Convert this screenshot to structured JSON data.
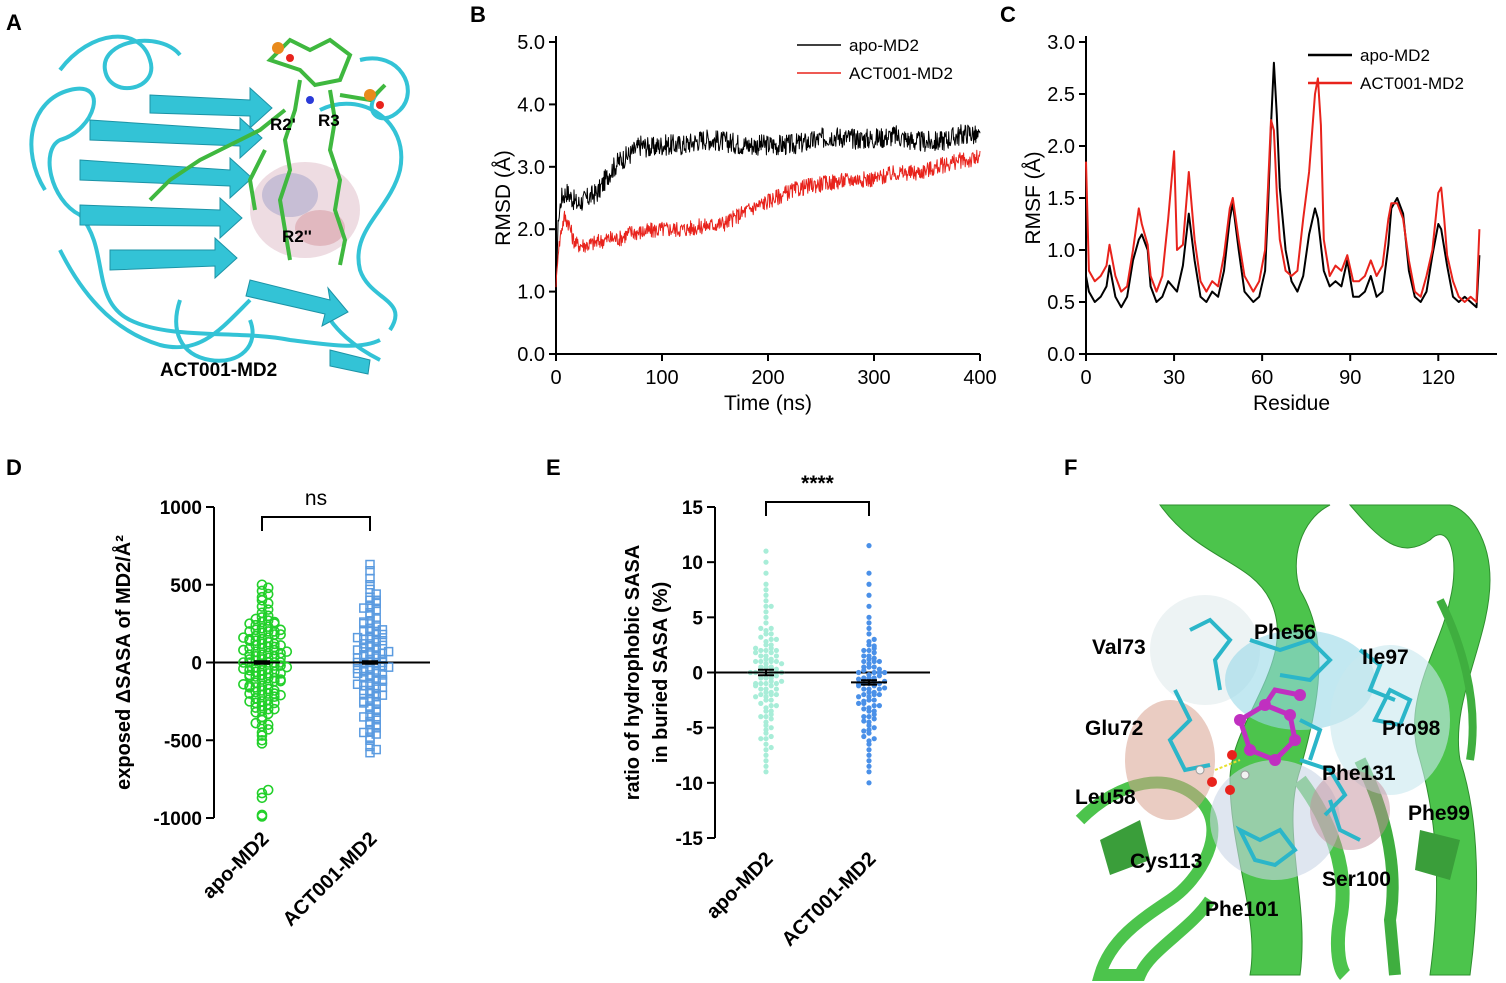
{
  "panels": {
    "A": {
      "letter": "A",
      "caption": "ACT001-MD2",
      "labels": [
        "R2'",
        "R3",
        "R2''"
      ],
      "colors": {
        "protein": "#33c3d6",
        "ligand": "#3fb83f"
      }
    },
    "F": {
      "letter": "F",
      "residues": [
        "Val73",
        "Phe56",
        "Ile97",
        "Glu72",
        "Pro98",
        "Phe131",
        "Leu58",
        "Phe99",
        "Cys113",
        "Ser100",
        "Phe101"
      ],
      "colors": {
        "protein": "#4cc44c",
        "ligand": "#c030c0",
        "sticks": "#2bb6c9"
      }
    }
  },
  "chart_data": [
    {
      "id": "B",
      "type": "line",
      "letter": "B",
      "title": "",
      "xlabel": "Time (ns)",
      "ylabel": "RMSD (Å)",
      "xlim": [
        0,
        400
      ],
      "ylim": [
        0,
        5
      ],
      "xticks": [
        0,
        100,
        200,
        300,
        400
      ],
      "yticks": [
        0,
        1,
        2,
        3,
        4,
        5
      ],
      "yticklabels": [
        "0.0",
        "1.0",
        "2.0",
        "3.0",
        "4.0",
        "5.0"
      ],
      "legend": "top-right",
      "series": [
        {
          "name": "apo-MD2",
          "color": "#000000",
          "noise": 0.17,
          "x": [
            0,
            2,
            5,
            10,
            15,
            20,
            30,
            40,
            50,
            60,
            70,
            80,
            90,
            100,
            120,
            140,
            160,
            180,
            200,
            220,
            240,
            260,
            280,
            300,
            320,
            340,
            360,
            380,
            390,
            400
          ],
          "y": [
            1.0,
            2.1,
            2.5,
            2.6,
            2.5,
            2.4,
            2.5,
            2.6,
            2.9,
            3.1,
            3.2,
            3.35,
            3.3,
            3.35,
            3.35,
            3.45,
            3.4,
            3.35,
            3.35,
            3.35,
            3.4,
            3.5,
            3.45,
            3.45,
            3.5,
            3.4,
            3.4,
            3.5,
            3.55,
            3.45
          ]
        },
        {
          "name": "ACT001-MD2",
          "color": "#e8231c",
          "noise": 0.13,
          "x": [
            0,
            2,
            5,
            8,
            12,
            16,
            20,
            30,
            40,
            50,
            60,
            70,
            80,
            100,
            120,
            140,
            160,
            180,
            200,
            220,
            240,
            260,
            280,
            300,
            320,
            340,
            360,
            380,
            390,
            400
          ],
          "y": [
            1.1,
            1.6,
            2.0,
            2.2,
            2.1,
            1.85,
            1.75,
            1.75,
            1.8,
            1.85,
            1.85,
            1.95,
            1.95,
            2.0,
            2.0,
            2.05,
            2.1,
            2.3,
            2.45,
            2.6,
            2.7,
            2.75,
            2.8,
            2.8,
            2.9,
            2.9,
            3.0,
            3.1,
            3.1,
            3.15
          ]
        }
      ]
    },
    {
      "id": "C",
      "type": "line",
      "letter": "C",
      "title": "",
      "xlabel": "Residue",
      "ylabel": "RMSF (Å)",
      "xlim": [
        0,
        140
      ],
      "ylim": [
        0,
        3
      ],
      "xticks": [
        0,
        30,
        60,
        90,
        120
      ],
      "yticks": [
        0,
        0.5,
        1,
        1.5,
        2,
        2.5,
        3
      ],
      "yticklabels": [
        "0.0",
        "0.5",
        "1.0",
        "1.5",
        "2.0",
        "2.5",
        "3.0"
      ],
      "legend": "top-right",
      "series": [
        {
          "name": "apo-MD2",
          "color": "#000000",
          "x": [
            0,
            1,
            3,
            5,
            7,
            8,
            10,
            12,
            14,
            16,
            18,
            19,
            21,
            22,
            24,
            26,
            28,
            31,
            33,
            35,
            37,
            39,
            41,
            43,
            45,
            47,
            49,
            50,
            52,
            54,
            57,
            59,
            61,
            62,
            63,
            64,
            65,
            66,
            68,
            70,
            72,
            74,
            76,
            78,
            79,
            81,
            83,
            85,
            87,
            89,
            91,
            93,
            95,
            97,
            99,
            101,
            103,
            104,
            106,
            108,
            110,
            112,
            114,
            116,
            118,
            120,
            121,
            123,
            125,
            127,
            129,
            131,
            133,
            134
          ],
          "y": [
            0.75,
            0.6,
            0.5,
            0.55,
            0.65,
            0.85,
            0.55,
            0.45,
            0.55,
            0.9,
            1.1,
            1.15,
            1.0,
            0.65,
            0.5,
            0.55,
            0.7,
            0.6,
            0.85,
            1.35,
            0.9,
            0.55,
            0.5,
            0.6,
            0.55,
            0.8,
            1.3,
            1.45,
            1.0,
            0.6,
            0.5,
            0.55,
            0.8,
            1.4,
            2.2,
            2.8,
            2.3,
            1.6,
            1.0,
            0.7,
            0.6,
            0.75,
            1.15,
            1.4,
            1.3,
            0.8,
            0.65,
            0.7,
            0.65,
            0.9,
            0.55,
            0.55,
            0.6,
            0.75,
            0.55,
            0.6,
            1.05,
            1.4,
            1.5,
            1.35,
            0.8,
            0.55,
            0.5,
            0.6,
            0.95,
            1.25,
            1.2,
            0.85,
            0.55,
            0.5,
            0.55,
            0.5,
            0.45,
            0.95
          ]
        },
        {
          "name": "ACT001-MD2",
          "color": "#e8231c",
          "x": [
            0,
            1,
            3,
            5,
            7,
            8,
            10,
            12,
            14,
            16,
            18,
            19,
            21,
            22,
            24,
            26,
            28,
            30,
            31,
            33,
            35,
            37,
            39,
            41,
            43,
            45,
            47,
            49,
            50,
            52,
            54,
            57,
            59,
            61,
            62,
            63,
            64,
            65,
            66,
            68,
            70,
            72,
            74,
            76,
            78,
            79,
            80,
            81,
            83,
            85,
            87,
            89,
            91,
            93,
            95,
            97,
            99,
            101,
            103,
            104,
            106,
            108,
            110,
            112,
            114,
            116,
            118,
            120,
            121,
            122,
            123,
            125,
            127,
            129,
            131,
            133,
            134
          ],
          "y": [
            1.85,
            0.8,
            0.7,
            0.75,
            0.85,
            1.05,
            0.75,
            0.6,
            0.65,
            1.0,
            1.4,
            1.25,
            1.05,
            0.75,
            0.6,
            0.75,
            1.3,
            1.95,
            1.0,
            1.05,
            1.75,
            1.1,
            0.7,
            0.6,
            0.7,
            0.65,
            0.95,
            1.4,
            1.5,
            1.1,
            0.75,
            0.6,
            0.7,
            1.0,
            1.6,
            2.25,
            2.15,
            1.55,
            1.1,
            0.8,
            0.75,
            0.8,
            1.3,
            1.75,
            2.5,
            2.65,
            2.2,
            1.1,
            0.75,
            0.85,
            0.8,
            0.95,
            0.7,
            0.7,
            0.75,
            0.9,
            0.75,
            0.85,
            1.3,
            1.45,
            1.45,
            1.3,
            0.9,
            0.6,
            0.55,
            0.75,
            1.0,
            1.55,
            1.6,
            1.3,
            0.95,
            0.7,
            0.55,
            0.5,
            0.55,
            0.5,
            1.2
          ]
        }
      ]
    },
    {
      "id": "D",
      "type": "scatter",
      "letter": "D",
      "title": "",
      "xlabel": "",
      "ylabel": "exposed ΔSASA of MD2/Å²",
      "categories": [
        "apo-MD2",
        "ACT001-MD2"
      ],
      "ylim": [
        -1000,
        1000
      ],
      "yticks": [
        -1000,
        -500,
        0,
        500,
        1000
      ],
      "yticklabels": [
        "-1000",
        "-500",
        "0",
        "500",
        "1000"
      ],
      "significance": "ns",
      "colors": [
        "#22d02a",
        "#5b9be0"
      ],
      "series": [
        {
          "name": "apo-MD2",
          "marker": "circle",
          "mean": 0,
          "sem": 8,
          "points": [
            -990,
            -980,
            -870,
            -840,
            -820,
            -520,
            -500,
            -470,
            -450,
            -430,
            -410,
            -400,
            -390,
            -370,
            -350,
            -330,
            -320,
            -310,
            -300,
            -290,
            -280,
            -270,
            -260,
            -250,
            -240,
            -230,
            -220,
            -210,
            -200,
            -190,
            -180,
            -170,
            -160,
            -150,
            -140,
            -130,
            -120,
            -110,
            -100,
            -90,
            -80,
            -70,
            -60,
            -50,
            -40,
            -30,
            -20,
            -10,
            0,
            10,
            20,
            30,
            40,
            50,
            60,
            70,
            80,
            90,
            100,
            110,
            120,
            130,
            140,
            150,
            160,
            170,
            180,
            190,
            200,
            210,
            220,
            230,
            240,
            250,
            260,
            270,
            280,
            290,
            300,
            320,
            340,
            360,
            380,
            400,
            420,
            440,
            460,
            480,
            500,
            -300,
            -250,
            -200,
            -150,
            -100,
            -50,
            0,
            50,
            100,
            150,
            200,
            250,
            -200,
            -120,
            -60,
            0,
            60,
            120,
            200,
            -80,
            0,
            80,
            -140,
            -20,
            40,
            140,
            -260,
            260,
            20,
            -40,
            90,
            -90,
            180,
            -180,
            0,
            30,
            -30,
            70,
            -70,
            110,
            -110,
            160,
            -160,
            210,
            -210
          ]
        },
        {
          "name": "ACT001-MD2",
          "marker": "square",
          "mean": 0,
          "sem": 8,
          "points": [
            -580,
            -560,
            -540,
            -500,
            -480,
            -460,
            -440,
            -420,
            -400,
            -380,
            -360,
            -340,
            -320,
            -300,
            -280,
            -260,
            -240,
            -220,
            -200,
            -180,
            -160,
            -140,
            -120,
            -100,
            -80,
            -60,
            -40,
            -20,
            0,
            20,
            40,
            60,
            80,
            100,
            120,
            140,
            160,
            180,
            200,
            220,
            240,
            260,
            280,
            300,
            320,
            340,
            360,
            380,
            400,
            420,
            440,
            470,
            500,
            540,
            590,
            630,
            -300,
            -250,
            -200,
            -150,
            -100,
            -50,
            0,
            50,
            100,
            150,
            200,
            250,
            -200,
            -120,
            -60,
            0,
            60,
            120,
            200,
            -80,
            0,
            80,
            -140,
            -20,
            40,
            140,
            -260,
            260,
            20,
            -40,
            90,
            -90,
            180,
            -180,
            0,
            30,
            -30,
            70,
            -70,
            110,
            -110,
            160,
            -160,
            210,
            -210,
            -350,
            350,
            -400,
            400,
            -450
          ]
        }
      ]
    },
    {
      "id": "E",
      "type": "scatter",
      "letter": "E",
      "title": "",
      "xlabel": "",
      "ylabel_lines": [
        "ratio of hydrophobic SASA",
        "in buried SASA (%)"
      ],
      "categories": [
        "apo-MD2",
        "ACT001-MD2"
      ],
      "ylim": [
        -15,
        15
      ],
      "yticks": [
        -15,
        -10,
        -5,
        0,
        5,
        10,
        15
      ],
      "yticklabels": [
        "-15",
        "-10",
        "-5",
        "0",
        "5",
        "10",
        "15"
      ],
      "significance": "****",
      "colors": [
        "#a8edd8",
        "#4a90e8"
      ],
      "series": [
        {
          "name": "apo-MD2",
          "marker": "dot",
          "mean": 0.0,
          "sem": 0.25,
          "points": [
            -9,
            -8.5,
            -8,
            -7.5,
            -7,
            -6.8,
            -6.5,
            -6,
            -5.8,
            -5.5,
            -5.2,
            -5,
            -4.8,
            -4.5,
            -4.2,
            -4,
            -3.8,
            -3.5,
            -3.2,
            -3,
            -2.8,
            -2.5,
            -2.2,
            -2,
            -1.8,
            -1.5,
            -1.2,
            -1,
            -0.8,
            -0.5,
            -0.2,
            0,
            0.2,
            0.5,
            0.8,
            1,
            1.2,
            1.5,
            1.8,
            2,
            2.2,
            2.5,
            2.8,
            3,
            3.2,
            3.5,
            3.8,
            4,
            4.5,
            5,
            5.5,
            6,
            6.5,
            7,
            7.5,
            8,
            9,
            10,
            11,
            -3,
            -2,
            -1,
            0,
            1,
            2,
            3,
            -2.5,
            -1.5,
            -0.5,
            0.5,
            1.5,
            2.5,
            -2,
            -1,
            0,
            1,
            2,
            -1.5,
            -0.5,
            0.5,
            1.5,
            -1,
            0,
            1,
            -4,
            4,
            -3.5,
            3.5,
            -6,
            6,
            -0.8,
            0.8,
            -2.2,
            2.2,
            -1.2,
            1.2,
            -0.3,
            0.3,
            0,
            -1.8,
            1.8
          ]
        },
        {
          "name": "ACT001-MD2",
          "marker": "dot",
          "mean": -0.9,
          "sem": 0.2,
          "points": [
            -10,
            -9,
            -8.5,
            -8,
            -7.5,
            -7,
            -6.5,
            -6.2,
            -6,
            -5.8,
            -5.5,
            -5.2,
            -5,
            -4.8,
            -4.5,
            -4.2,
            -4,
            -3.8,
            -3.5,
            -3.2,
            -3,
            -2.8,
            -2.5,
            -2.2,
            -2,
            -1.8,
            -1.5,
            -1.2,
            -1,
            -0.8,
            -0.5,
            -0.2,
            0,
            0.2,
            0.5,
            0.8,
            1,
            1.2,
            1.5,
            1.8,
            2,
            2.2,
            2.5,
            2.8,
            3,
            3.5,
            4,
            4.5,
            5,
            6,
            7,
            8,
            9,
            11.5,
            -3,
            -2,
            -1,
            0,
            1,
            2,
            -2.5,
            -1.5,
            -0.5,
            0.5,
            1.5,
            -2,
            -1,
            0,
            1,
            -1.5,
            -0.5,
            0.5,
            -1,
            0,
            -4,
            -3.5,
            -2.8,
            -2.2,
            -1.8,
            -1.2,
            -0.8,
            -0.3,
            0.3,
            -0.6,
            -1.4,
            -2.6,
            -3.3,
            -4.4,
            -5.3,
            1.3,
            2.4
          ]
        }
      ]
    }
  ]
}
